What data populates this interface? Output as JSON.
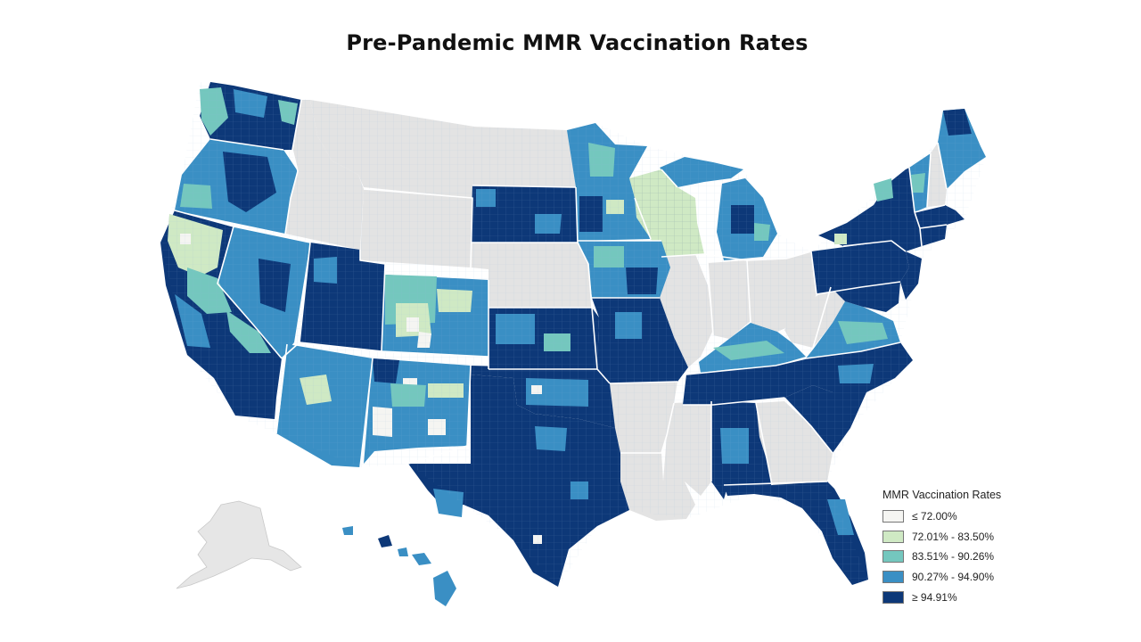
{
  "title": "Pre-Pandemic MMR Vaccination Rates",
  "legend": {
    "title": "MMR Vaccination Rates",
    "items": [
      {
        "label": "≤ 72.00%",
        "color": "#f5f5f2"
      },
      {
        "label": "72.01% - 83.50%",
        "color": "#cfe9c4"
      },
      {
        "label": "83.51% - 90.26%",
        "color": "#74c7be"
      },
      {
        "label": "90.27% - 94.90%",
        "color": "#3a8fc4"
      },
      {
        "label": "≥ 94.91%",
        "color": "#0d3878"
      }
    ]
  },
  "no_data_color": "#e3e3e3",
  "state_border_color": "#ffffff"
}
